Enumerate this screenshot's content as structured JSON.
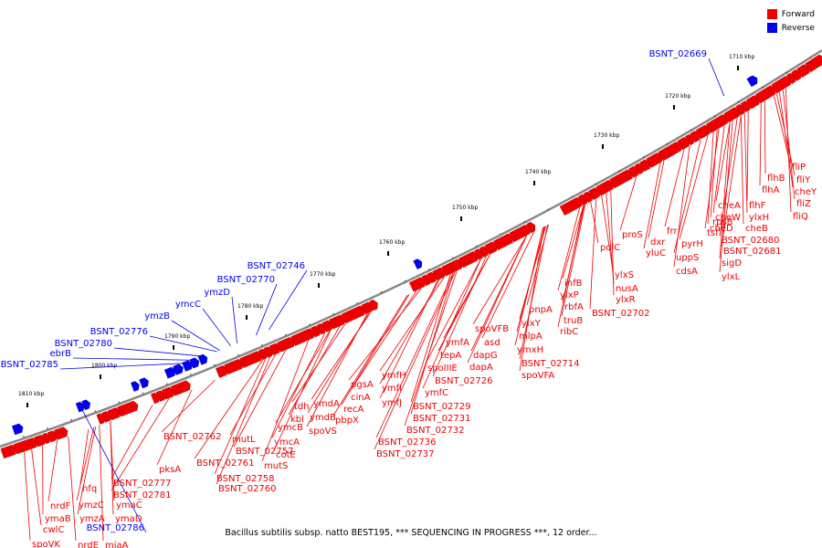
{
  "caption": "Bacillus subtilis subsp. natto BEST195, *** SEQUENCING IN PROGRESS ***, 12 order...",
  "legend": [
    {
      "label": "Forward",
      "color": "#ee0000"
    },
    {
      "label": "Reverse",
      "color": "#0000ee"
    }
  ],
  "colors": {
    "forward": "#ee0000",
    "reverse": "#0000ee",
    "backbone": "#888888"
  },
  "position_ticks": [
    "1710 kbp",
    "1720 kbp",
    "1730 kbp",
    "1740 kbp",
    "1750 kbp",
    "1760 kbp",
    "1770 kbp",
    "1780 kbp",
    "1790 kbp",
    "1800 kbp",
    "1810 kbp"
  ],
  "forward_labels": [
    "fliP",
    "fliY",
    "flhB",
    "cheY",
    "flhA",
    "fliZ",
    "fliQ",
    "flhF",
    "ylxH",
    "cheA",
    "cheW",
    "cheB",
    "rpsB",
    "tsf",
    "cheD",
    "frr",
    "pyrH",
    "BSNT_02680",
    "BSNT_02681",
    "dxr",
    "uppS",
    "sigD",
    "ylxL",
    "proS",
    "yluC",
    "cdsA",
    "polC",
    "ylxS",
    "nusA",
    "infB",
    "ylxR",
    "ylxP",
    "rbfA",
    "truB",
    "ribC",
    "BSNT_02702",
    "pnpA",
    "ylxY",
    "mlpA",
    "ymxH",
    "spoVFB",
    "asd",
    "dapG",
    "dapA",
    "BSNT_02714",
    "spoVFA",
    "ymfA",
    "tepA",
    "spoIIIE",
    "BSNT_02726",
    "ymfC",
    "ymfH",
    "ymfI",
    "ymfJ",
    "BSNT_02729",
    "BSNT_02731",
    "BSNT_02732",
    "BSNT_02736",
    "BSNT_02737",
    "pgsA",
    "cinA",
    "recA",
    "pbpX",
    "tdh",
    "kbl",
    "ymdA",
    "ymdB",
    "spoVS",
    "ymcB",
    "ymcA",
    "cotE",
    "mutS",
    "mutL",
    "BSNT_02757",
    "BSNT_02761",
    "BSNT_02758",
    "BSNT_02760",
    "BSNT_02762",
    "pksA",
    "BSNT_02777",
    "BSNT_02781",
    "hfq",
    "ymzC",
    "ymaC",
    "ymzA",
    "ymaD",
    "nrdF",
    "ymaB",
    "cwlC",
    "spoVK",
    "nrdE",
    "miaA"
  ],
  "reverse_labels": [
    "BSNT_02669",
    "BSNT_02746",
    "BSNT_02770",
    "ymzD",
    "ymcC",
    "ymzB",
    "BSNT_02776",
    "BSNT_02780",
    "ebrB",
    "BSNT_02785",
    "BSNT_02786"
  ]
}
